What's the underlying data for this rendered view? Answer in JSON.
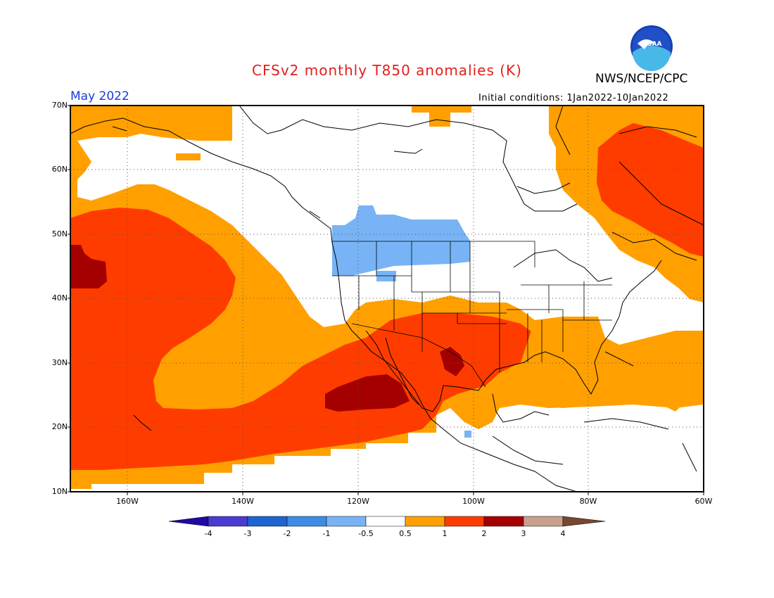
{
  "title": "CFSv2 monthly T850 anomalies (K)",
  "agency": "NWS/NCEP/CPC",
  "logo_text": "NOAA",
  "month": "May 2022",
  "initial_conditions": "Initial conditions: 1Jan2022-10Jan2022",
  "lat_labels": [
    "70N",
    "60N",
    "50N",
    "40N",
    "30N",
    "20N",
    "10N"
  ],
  "lon_labels": [
    "160W",
    "140W",
    "120W",
    "100W",
    "80W",
    "60W"
  ],
  "colorbar": {
    "labels": [
      "-4",
      "-3",
      "-2",
      "-1",
      "-0.5",
      "0.5",
      "1",
      "2",
      "3",
      "4"
    ],
    "colors": [
      "#1e0aa0",
      "#4a3bd2",
      "#1e64d2",
      "#3c8ce6",
      "#78b4f5",
      "#ffffff",
      "#ffa000",
      "#ff3c00",
      "#a50000",
      "#c8a08c",
      "#784632"
    ]
  }
}
